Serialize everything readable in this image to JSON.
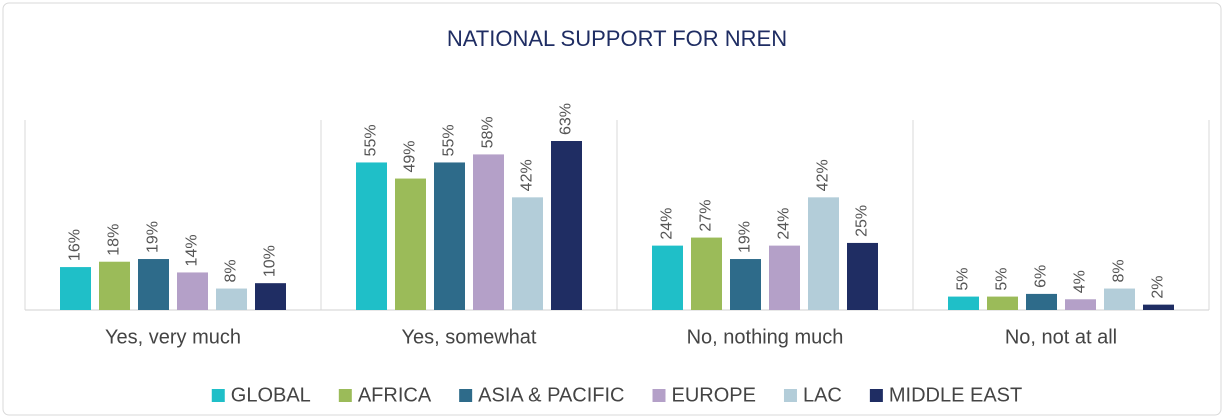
{
  "chart_data": {
    "type": "bar",
    "title": "NATIONAL SUPPORT FOR NREN",
    "categories": [
      "Yes, very much",
      "Yes, somewhat",
      "No, nothing much",
      "No, not at all"
    ],
    "series": [
      {
        "name": "GLOBAL",
        "color": "#1fbfc8",
        "values": [
          16,
          55,
          24,
          5
        ],
        "value_labels": [
          "16%",
          "55%",
          "24%",
          "5%"
        ]
      },
      {
        "name": "AFRICA",
        "color": "#9bbb59",
        "values": [
          18,
          49,
          27,
          5
        ],
        "value_labels": [
          "18%",
          "49%",
          "27%",
          "5%"
        ]
      },
      {
        "name": "ASIA & PACIFIC",
        "color": "#2e6b8a",
        "values": [
          19,
          55,
          19,
          6
        ],
        "value_labels": [
          "19%",
          "55%",
          "19%",
          "6%"
        ]
      },
      {
        "name": "EUROPE",
        "color": "#b4a0c8",
        "values": [
          14,
          58,
          24,
          4
        ],
        "value_labels": [
          "14%",
          "58%",
          "24%",
          "4%"
        ]
      },
      {
        "name": "LAC",
        "color": "#b3cdd9",
        "values": [
          8,
          42,
          42,
          8
        ],
        "value_labels": [
          "8%",
          "42%",
          "42%",
          "8%"
        ]
      },
      {
        "name": "MIDDLE EAST",
        "color": "#1f2d63",
        "values": [
          10,
          63,
          25,
          2
        ],
        "value_labels": [
          "10%",
          "63%",
          "25%",
          "2%"
        ]
      }
    ]
  }
}
